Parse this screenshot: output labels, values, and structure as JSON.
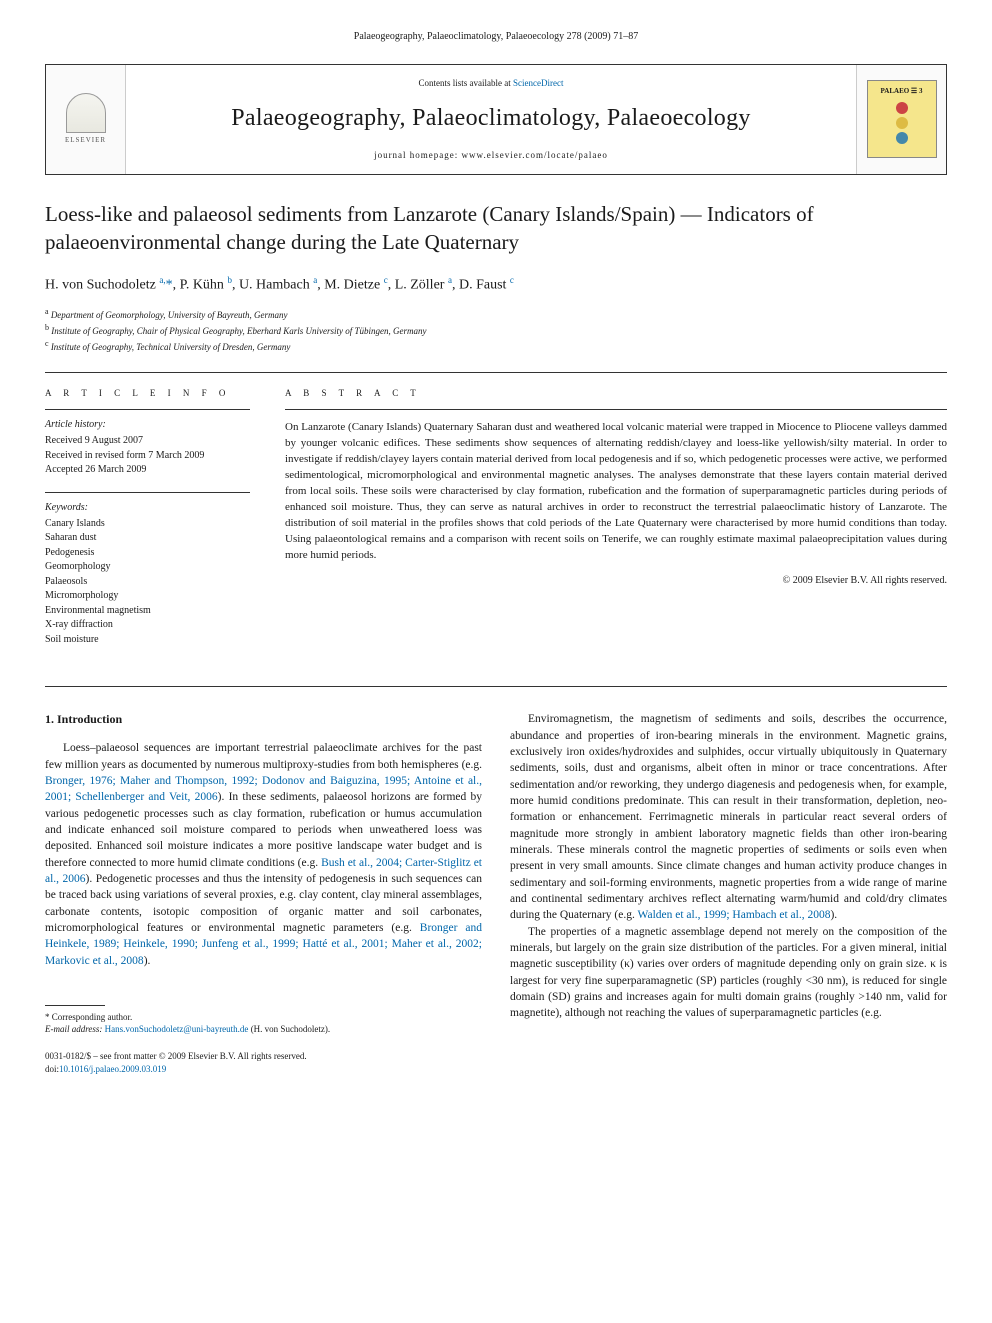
{
  "header": {
    "citation": "Palaeogeography, Palaeoclimatology, Palaeoecology 278 (2009) 71–87"
  },
  "banner": {
    "publisher": "ELSEVIER",
    "contents_prefix": "Contents lists available at ",
    "contents_link": "ScienceDirect",
    "journal_name": "Palaeogeography, Palaeoclimatology, Palaeoecology",
    "homepage_prefix": "journal homepage: ",
    "homepage_url": "www.elsevier.com/locate/palaeo",
    "badge_text": "PALAEO ☰ 3",
    "globe_colors": [
      "#c44",
      "#db4",
      "#48a"
    ]
  },
  "article": {
    "title": "Loess-like and palaeosol sediments from Lanzarote (Canary Islands/Spain) — Indicators of palaeoenvironmental change during the Late Quaternary",
    "authors_html": "H. von Suchodoletz <sup>a,</sup><span class='star'>*</span>, P. Kühn <sup>b</sup>, U. Hambach <sup>a</sup>, M. Dietze <sup>c</sup>, L. Zöller <sup>a</sup>, D. Faust <sup>c</sup>",
    "affiliations": [
      {
        "sup": "a",
        "text": "Department of Geomorphology, University of Bayreuth, Germany"
      },
      {
        "sup": "b",
        "text": "Institute of Geography, Chair of Physical Geography, Eberhard Karls University of Tübingen, Germany"
      },
      {
        "sup": "c",
        "text": "Institute of Geography, Technical University of Dresden, Germany"
      }
    ]
  },
  "info": {
    "heading": "A R T I C L E   I N F O",
    "history_label": "Article history:",
    "history": [
      "Received 9 August 2007",
      "Received in revised form 7 March 2009",
      "Accepted 26 March 2009"
    ],
    "keywords_label": "Keywords:",
    "keywords": [
      "Canary Islands",
      "Saharan dust",
      "Pedogenesis",
      "Geomorphology",
      "Palaeosols",
      "Micromorphology",
      "Environmental magnetism",
      "X-ray diffraction",
      "Soil moisture"
    ]
  },
  "abstract": {
    "heading": "A B S T R A C T",
    "text": "On Lanzarote (Canary Islands) Quaternary Saharan dust and weathered local volcanic material were trapped in Miocence to Pliocene valleys dammed by younger volcanic edifices. These sediments show sequences of alternating reddish/clayey and loess-like yellowish/silty material. In order to investigate if reddish/clayey layers contain material derived from local pedogenesis and if so, which pedogenetic processes were active, we performed sedimentological, micromorphological and environmental magnetic analyses. The analyses demonstrate that these layers contain material derived from local soils. These soils were characterised by clay formation, rubefication and the formation of superparamagnetic particles during periods of enhanced soil moisture. Thus, they can serve as natural archives in order to reconstruct the terrestrial palaeoclimatic history of Lanzarote. The distribution of soil material in the profiles shows that cold periods of the Late Quaternary were characterised by more humid conditions than today. Using palaeontological remains and a comparison with recent soils on Tenerife, we can roughly estimate maximal palaeoprecipitation values during more humid periods.",
    "copyright": "© 2009 Elsevier B.V. All rights reserved."
  },
  "body": {
    "section_heading": "1. Introduction",
    "col1_paras": [
      {
        "pre": "Loess–palaeosol sequences are important terrestrial palaeoclimate archives for the past few million years as documented by numerous multiproxy-studies from both hemispheres (e.g. ",
        "cite": "Bronger, 1976; Maher and Thompson, 1992; Dodonov and Baiguzina, 1995; Antoine et al., 2001; Schellenberger and Veit, 2006",
        "post": "). In these sediments, palaeosol horizons are formed by various pedogenetic processes such as clay formation, rubefication or humus accumulation and indicate enhanced soil moisture compared to periods when unweathered loess was deposited. Enhanced soil moisture indicates a more positive landscape water budget and is therefore connected to more humid climate conditions (e.g. ",
        "cite2": "Bush et al., 2004; Carter-Stiglitz et al., 2006",
        "post2": "). Pedogenetic processes and thus the intensity of pedogenesis in such sequences can be traced back using variations of several proxies, e.g. clay content, clay mineral assemblages, carbonate contents, isotopic composition of organic matter and soil carbonates, micromorphological features or environmental magnetic parameters (e.g. ",
        "cite3": "Bronger and Heinkele, 1989; Heinkele, 1990; Junfeng et al., 1999; Hatté et al., 2001; Maher et al., 2002; Markovic et al., 2008",
        "post3": ")."
      }
    ],
    "col2_paras": [
      "Enviromagnetism, the magnetism of sediments and soils, describes the occurrence, abundance and properties of iron-bearing minerals in the environment. Magnetic grains, exclusively iron oxides/hydroxides and sulphides, occur virtually ubiquitously in Quaternary sediments, soils, dust and organisms, albeit often in minor or trace concentrations. After sedimentation and/or reworking, they undergo diagenesis and pedogenesis when, for example, more humid conditions predominate. This can result in their transformation, depletion, neo-formation or enhancement. Ferrimagnetic minerals in particular react several orders of magnitude more strongly in ambient laboratory magnetic fields than other iron-bearing minerals. These minerals control the magnetic properties of sediments or soils even when present in very small amounts. Since climate changes and human activity produce changes in sedimentary and soil-forming environments, magnetic properties from a wide range of marine and continental sedimentary archives reflect alternating warm/humid and cold/dry climates during the Quaternary (e.g. ",
      "The properties of a magnetic assemblage depend not merely on the composition of the minerals, but largely on the grain size distribution of the particles. For a given mineral, initial magnetic susceptibility (κ) varies over orders of magnitude depending only on grain size. κ is largest for very fine superparamagnetic (SP) particles (roughly <30 nm), is reduced for single domain (SD) grains and increases again for multi domain grains (roughly >140 nm, valid for magnetite), although not reaching the values of superparamagnetic particles (e.g."
    ],
    "col2_cite1": "Walden et al., 1999; Hambach et al., 2008",
    "col2_cite1_post": ")."
  },
  "footnote": {
    "corresponding": "* Corresponding author.",
    "email_label": "E-mail address: ",
    "email": "Hans.vonSuchodoletz@uni-bayreuth.de",
    "email_who": " (H. von Suchodoletz)."
  },
  "footer": {
    "line1": "0031-0182/$ – see front matter © 2009 Elsevier B.V. All rights reserved.",
    "doi_label": "doi:",
    "doi": "10.1016/j.palaeo.2009.03.019"
  }
}
